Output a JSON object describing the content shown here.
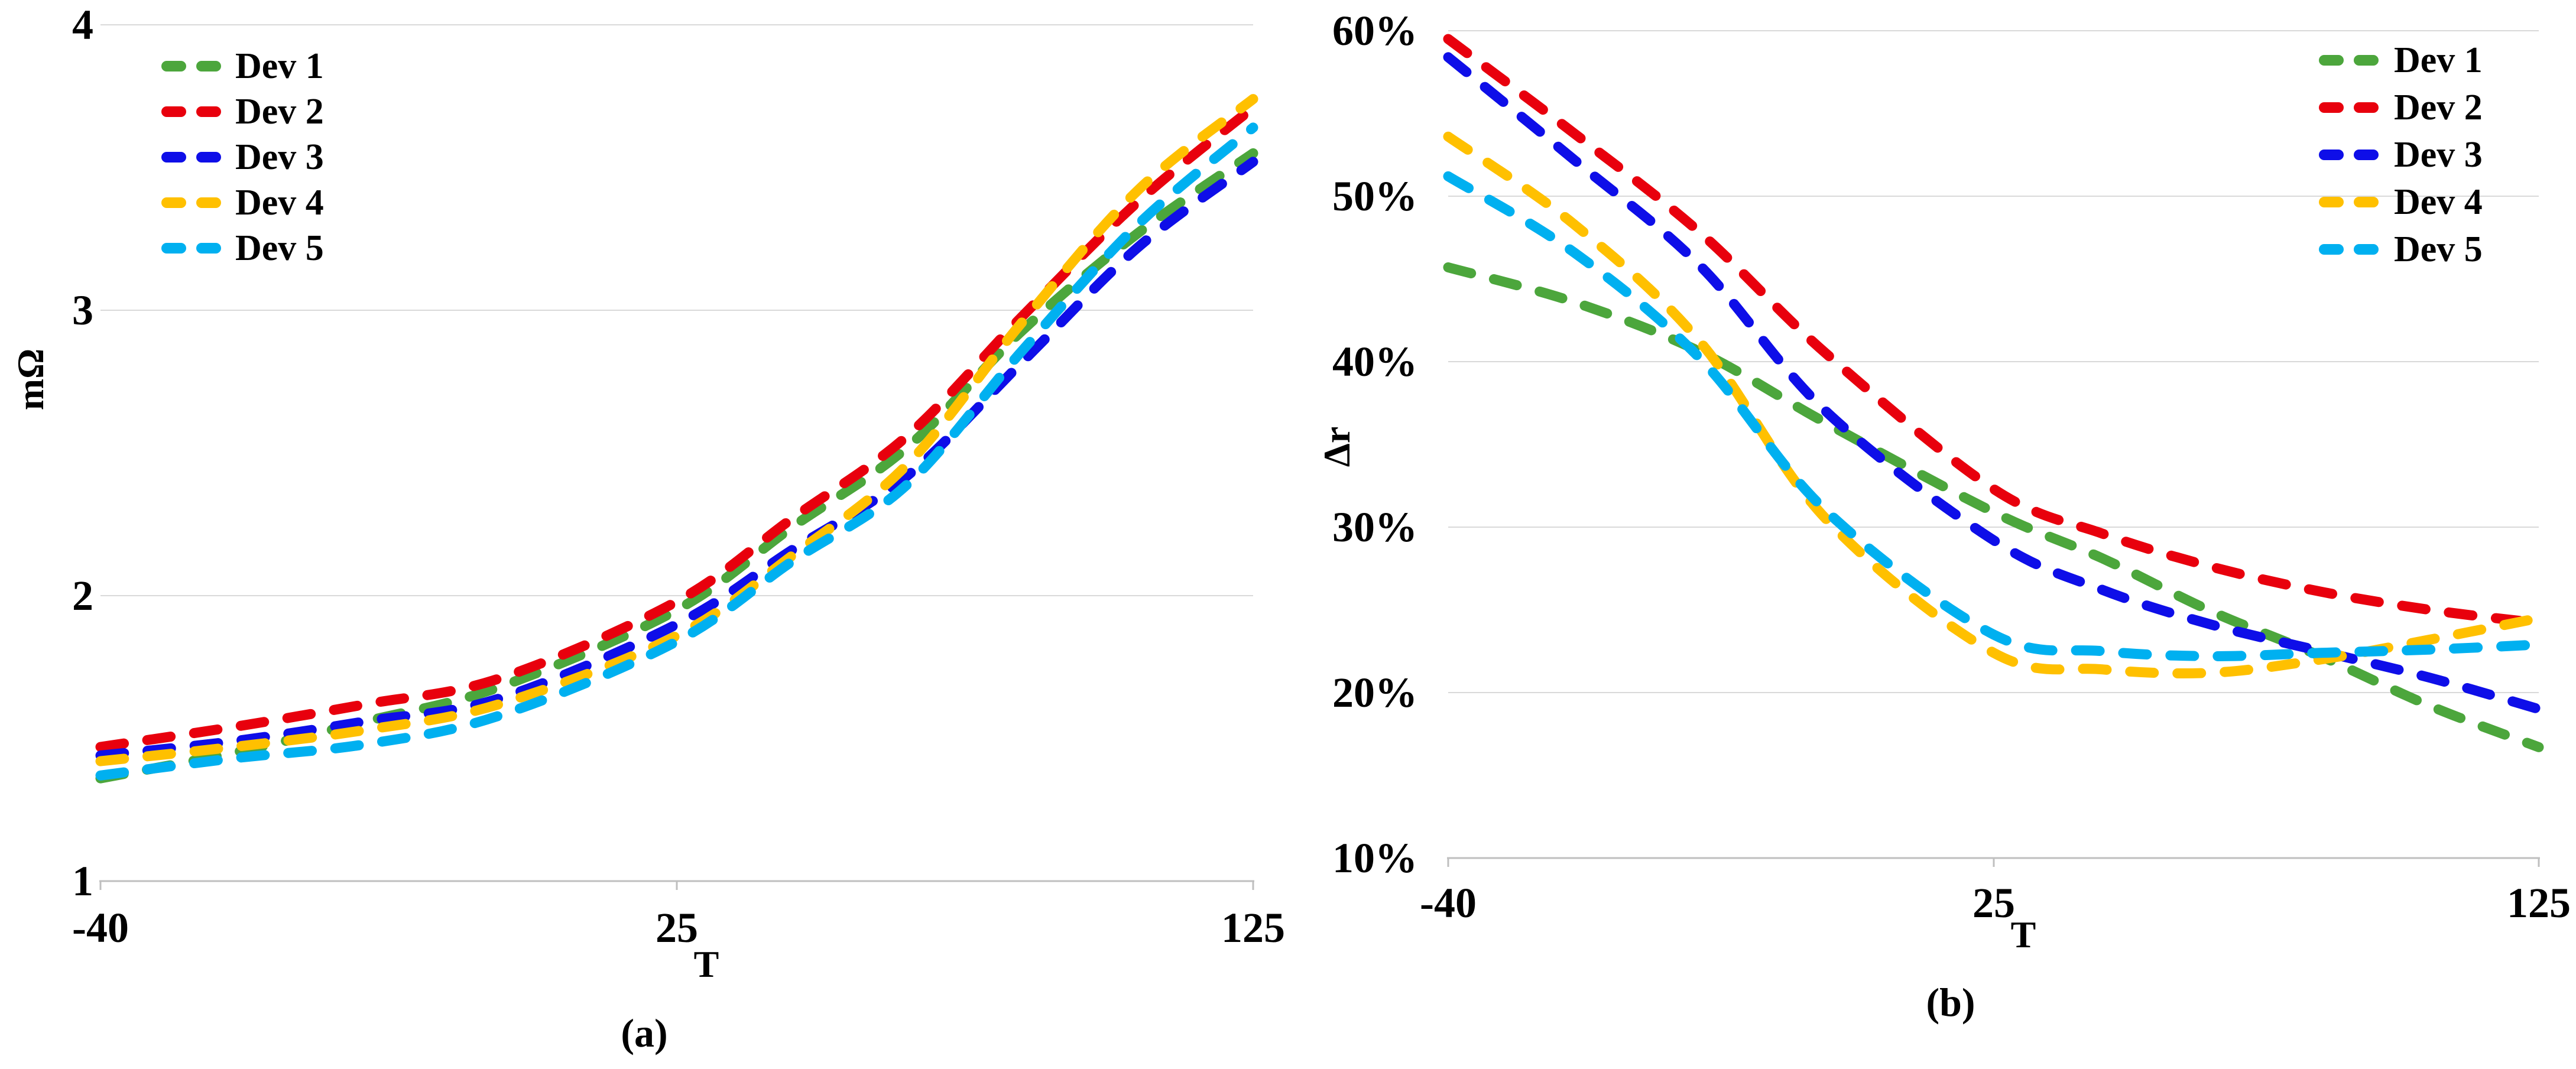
{
  "figure": {
    "captions": [
      "(a)",
      "(b)"
    ],
    "colors": {
      "grid": "#D9D9D9",
      "axis": "#BFBFBF",
      "text": "#000000",
      "background": "#FFFFFF"
    }
  },
  "chart_data": [
    {
      "type": "line",
      "panel": "a",
      "title": "",
      "xlabel": "T",
      "ylabel": "mΩ",
      "line_style": "dashed",
      "grid": "horizontal",
      "legend_position": "inside-top-left",
      "ylim": [
        1,
        4
      ],
      "y_ticks": [
        "4",
        "3",
        "2",
        "1"
      ],
      "y_tick_values": [
        4,
        3,
        2,
        1
      ],
      "x_tick_labels": [
        "-40",
        "25",
        "125"
      ],
      "x_tick_values": [
        -40,
        25,
        125
      ],
      "x": [
        -40,
        -25,
        -10,
        5,
        25,
        45,
        65,
        85,
        105,
        125
      ],
      "series": [
        {
          "name": "Dev 1",
          "color": "#4CA63C",
          "values": [
            1.36,
            1.45,
            1.56,
            1.68,
            1.95,
            2.24,
            2.52,
            2.93,
            3.27,
            3.55
          ]
        },
        {
          "name": "Dev 2",
          "color": "#E8000D",
          "values": [
            1.47,
            1.54,
            1.62,
            1.71,
            1.98,
            2.27,
            2.56,
            2.98,
            3.38,
            3.71
          ]
        },
        {
          "name": "Dev 3",
          "color": "#0E0EE8",
          "values": [
            1.44,
            1.49,
            1.56,
            1.64,
            1.9,
            2.16,
            2.42,
            2.82,
            3.22,
            3.52
          ]
        },
        {
          "name": "Dev 4",
          "color": "#FFC000",
          "values": [
            1.42,
            1.47,
            1.53,
            1.62,
            1.86,
            2.14,
            2.46,
            2.96,
            3.42,
            3.74
          ]
        },
        {
          "name": "Dev 5",
          "color": "#00B0F0",
          "values": [
            1.37,
            1.43,
            1.48,
            1.58,
            1.84,
            2.12,
            2.39,
            2.86,
            3.3,
            3.64
          ]
        }
      ]
    },
    {
      "type": "line",
      "panel": "b",
      "title": "",
      "xlabel": "T",
      "ylabel": "Δr",
      "line_style": "dashed",
      "grid": "horizontal",
      "legend_position": "inside-top-right",
      "ylim": [
        10,
        60
      ],
      "y_ticks": [
        "60%",
        "50%",
        "40%",
        "30%",
        "20%",
        "10%"
      ],
      "y_tick_values": [
        60,
        50,
        40,
        30,
        20,
        10
      ],
      "x_tick_labels": [
        "-40",
        "25",
        "125"
      ],
      "x_tick_values": [
        -40,
        25,
        125
      ],
      "x": [
        -40,
        -25,
        -10,
        5,
        25,
        45,
        65,
        85,
        105,
        125
      ],
      "unit": "percent",
      "series": [
        {
          "name": "Dev 1",
          "color": "#4CA63C",
          "values": [
            45.7,
            43.6,
            40.6,
            36.3,
            30.9,
            28.1,
            24.9,
            22.2,
            19.2,
            16.7
          ]
        },
        {
          "name": "Dev 2",
          "color": "#E8000D",
          "values": [
            59.5,
            53.8,
            47.8,
            40.5,
            32.3,
            29.6,
            27.6,
            26.1,
            25.0,
            24.2
          ]
        },
        {
          "name": "Dev 3",
          "color": "#0E0EE8",
          "values": [
            58.4,
            52.2,
            45.8,
            37.0,
            29.2,
            26.2,
            24.1,
            22.5,
            20.9,
            19.0
          ]
        },
        {
          "name": "Dev 4",
          "color": "#FFC000",
          "values": [
            53.6,
            48.3,
            41.2,
            30.5,
            22.4,
            21.4,
            21.2,
            22.0,
            23.2,
            24.5
          ]
        },
        {
          "name": "Dev 5",
          "color": "#00B0F0",
          "values": [
            51.2,
            46.6,
            40.2,
            31.0,
            23.5,
            22.5,
            22.2,
            22.4,
            22.6,
            22.9
          ]
        }
      ]
    }
  ]
}
